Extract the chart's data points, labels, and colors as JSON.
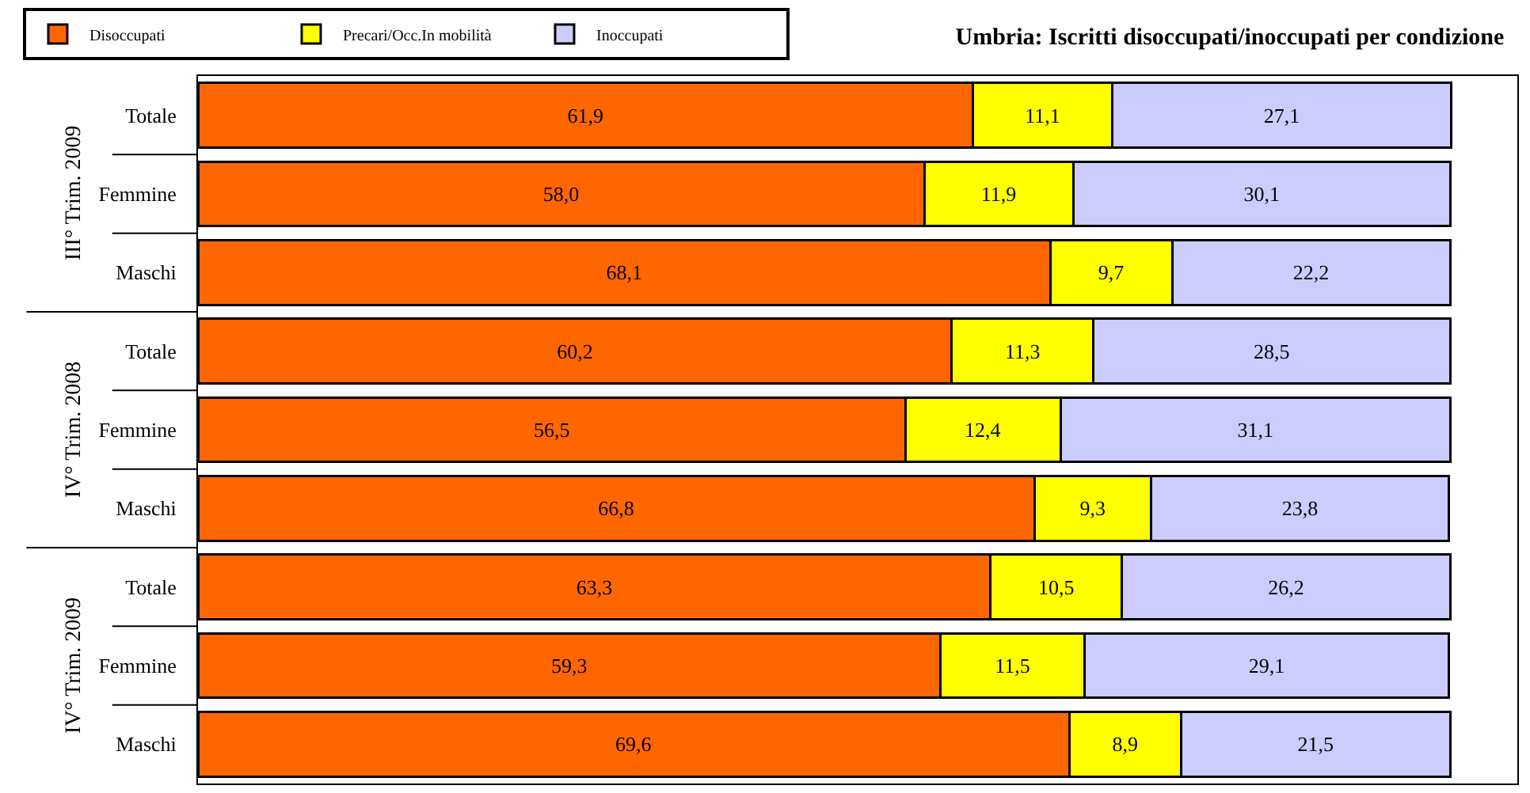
{
  "chart_data": {
    "type": "bar",
    "orientation": "horizontal",
    "stacked": true,
    "title": "Umbria: Iscritti disoccupati/inoccupati per condizione",
    "categories": [
      "Totale",
      "Femmine",
      "Maschi",
      "Totale",
      "Femmine",
      "Maschi",
      "Totale",
      "Femmine",
      "Maschi"
    ],
    "annotations": [
      "III° Trim. 2009",
      "IV° Trim. 2008",
      "IV° Trim. 2009"
    ],
    "tick_labels": "y",
    "legend": "top left",
    "series": [
      {
        "name": "Disoccupati",
        "color": "#ff6600",
        "values": [
          61.9,
          58.0,
          68.1,
          60.2,
          56.5,
          66.8,
          63.3,
          59.3,
          69.6
        ],
        "value_labels": [
          "61,9",
          "58,0",
          "68,1",
          "60,2",
          "56,5",
          "66,8",
          "63,3",
          "59,3",
          "69,6"
        ]
      },
      {
        "name": "Precari/Occ.In mobilità",
        "color": "#ffff00",
        "values": [
          11.1,
          11.9,
          9.7,
          11.3,
          12.4,
          9.3,
          10.5,
          11.5,
          8.9
        ],
        "value_labels": [
          "11,1",
          "11,9",
          "9,7",
          "11,3",
          "12,4",
          "9,3",
          "10,5",
          "11,5",
          "8,9"
        ]
      },
      {
        "name": "Inoccupati",
        "color": "#ccccff",
        "values": [
          27.1,
          30.1,
          22.2,
          28.5,
          31.1,
          23.8,
          26.2,
          29.1,
          21.5
        ],
        "value_labels": [
          "27,1",
          "30,1",
          "22,2",
          "28,5",
          "31,1",
          "23,8",
          "26,2",
          "29,1",
          "21,5"
        ]
      }
    ]
  }
}
